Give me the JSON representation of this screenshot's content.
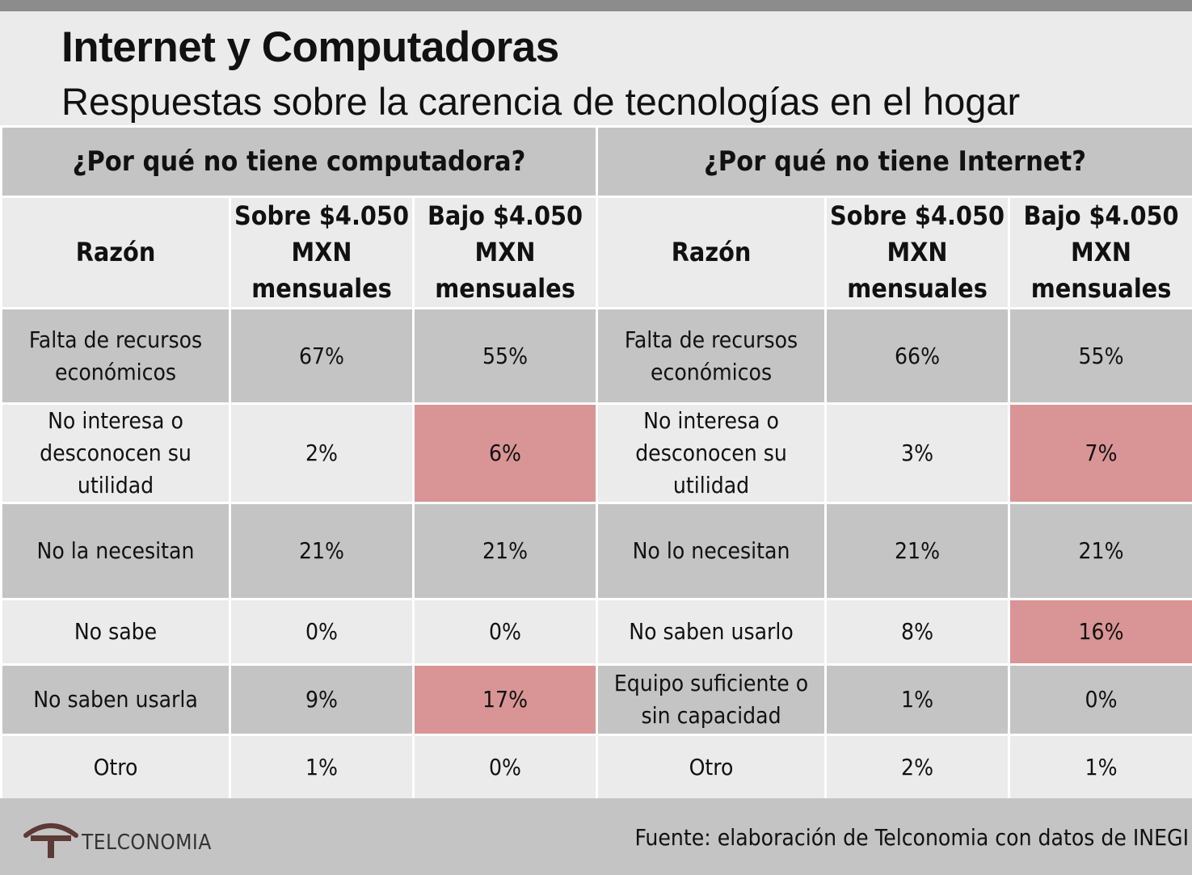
{
  "header": {
    "title": "Internet y Computadoras",
    "subtitle": "Respuestas sobre la carencia de tecnologías en el hogar"
  },
  "sections": {
    "computer": "¿Por qué no tiene computadora?",
    "internet": "¿Por qué no tiene Internet?"
  },
  "columns": {
    "reason": "Razón",
    "above": "Sobre $4.050 MXN mensuales",
    "below": "Bajo $4.050 MXN mensuales"
  },
  "rows": [
    {
      "computer_reason": "Falta de recursos económicos",
      "computer_above": "67%",
      "computer_below": "55%",
      "internet_reason": "Falta de recursos económicos",
      "internet_above": "66%",
      "internet_below": "55%"
    },
    {
      "computer_reason": "No interesa o desconocen su utilidad",
      "computer_above": "2%",
      "computer_below": "6%",
      "internet_reason": "No interesa o desconocen su utilidad",
      "internet_above": "3%",
      "internet_below": "7%"
    },
    {
      "computer_reason": "No la necesitan",
      "computer_above": "21%",
      "computer_below": "21%",
      "internet_reason": "No lo necesitan",
      "internet_above": "21%",
      "internet_below": "21%"
    },
    {
      "computer_reason": "No sabe",
      "computer_above": "0%",
      "computer_below": "0%",
      "internet_reason": "No saben usarlo",
      "internet_above": "8%",
      "internet_below": "16%"
    },
    {
      "computer_reason": "No saben usarla",
      "computer_above": "9%",
      "computer_below": "17%",
      "internet_reason": "Equipo suficiente o sin capacidad",
      "internet_above": "1%",
      "internet_below": "0%"
    },
    {
      "computer_reason": "Otro",
      "computer_above": "1%",
      "computer_below": "0%",
      "internet_reason": "Otro",
      "internet_above": "2%",
      "internet_below": "1%"
    }
  ],
  "colors": {
    "highlight": "#d99595",
    "dark_row": "#c4c4c4",
    "light_row": "#ebebeb",
    "top_bar": "#8c8c8c",
    "logo": "#5c3a36"
  },
  "footer": {
    "logo_icon": "telconomia-t-logo-icon",
    "logo_text": "TELCONOMIA",
    "source": "Fuente: elaboración de Telconomia con datos de INEGI"
  }
}
